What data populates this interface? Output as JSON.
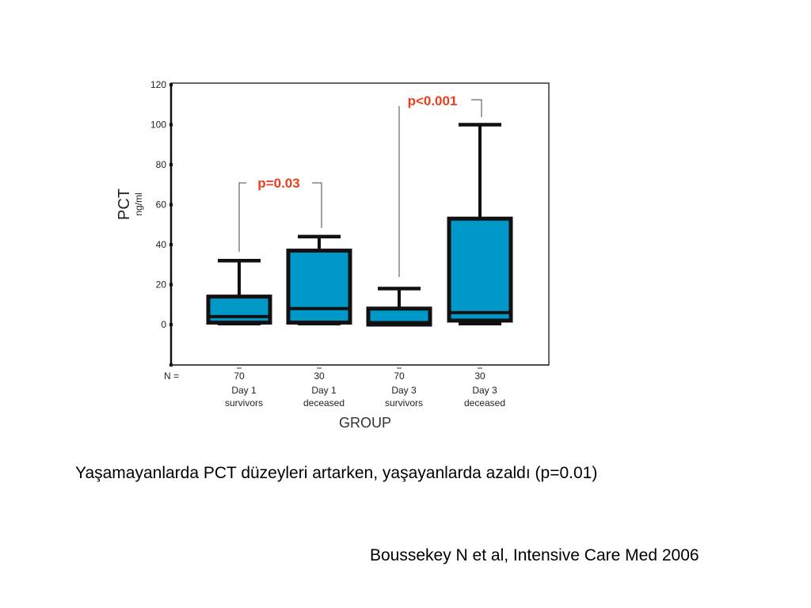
{
  "chart_data": {
    "type": "boxplot",
    "title": "",
    "xlabel": "GROUP",
    "ylabel": "PCT",
    "ylabel_unit": "ng/ml",
    "ylim": [
      -20,
      120
    ],
    "yticks": [
      120,
      100,
      80,
      60,
      40,
      20,
      0
    ],
    "grid": false,
    "n_label": "N  =",
    "categories": [
      {
        "line1": "Day 1",
        "line2": "survivors",
        "n": "70"
      },
      {
        "line1": "Day 1",
        "line2": "deceased",
        "n": "30"
      },
      {
        "line1": "Day 3",
        "line2": "survivors",
        "n": "70"
      },
      {
        "line1": "Day 3",
        "line2": "deceased",
        "n": "30"
      }
    ],
    "boxes": [
      {
        "group": "Day 1 survivors",
        "min": 0,
        "q1": 1,
        "median": 4,
        "q3": 14,
        "max": 32
      },
      {
        "group": "Day 1 deceased",
        "min": 0,
        "q1": 1,
        "median": 8,
        "q3": 37,
        "max": 44
      },
      {
        "group": "Day 3 survivors",
        "min": 0,
        "q1": 0,
        "median": 1,
        "q3": 8,
        "max": 18
      },
      {
        "group": "Day 3 deceased",
        "min": 0,
        "q1": 2,
        "median": 6,
        "q3": 53,
        "max": 100
      }
    ],
    "annotations": [
      {
        "text": "p=0.03",
        "between": [
          "Day 1 survivors",
          "Day 1 deceased"
        ]
      },
      {
        "text": "p<0.001",
        "between": [
          "Day 3 survivors",
          "Day 3 deceased"
        ]
      }
    ],
    "colors": {
      "box_fill": "#0098c8",
      "box_edge": "#111111",
      "annotation": "#e8401c"
    }
  },
  "caption": "Yaşamayanlarda PCT düzeyleri artarken, yaşayanlarda azaldı (p=0.01)",
  "citation": "Boussekey N et al, Intensive Care Med 2006"
}
